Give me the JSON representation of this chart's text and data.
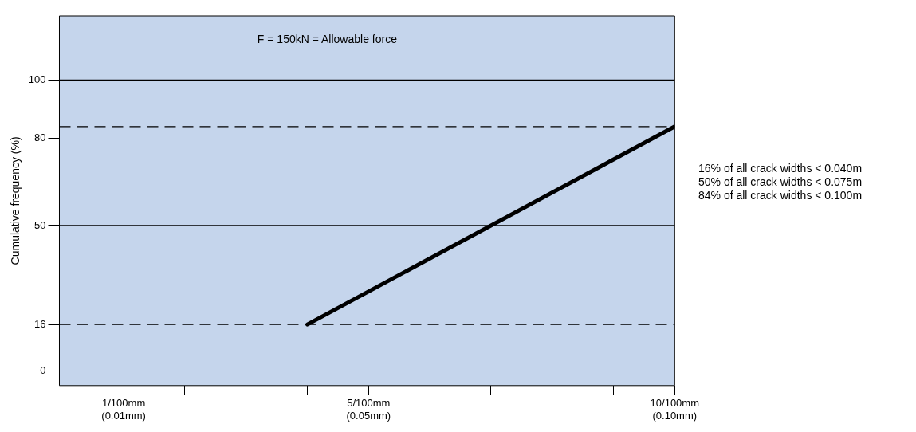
{
  "chart_data": {
    "type": "line",
    "ylabel": "Cumulative frequency (%)",
    "annotations": [
      "F = 150kN = Allowable force",
      "16% of all crack widths < 0.040m",
      "50% of all crack widths < 0.075m",
      "84% of all crack widths < 0.100m"
    ],
    "categories": [
      "1/100mm\n(0.01mm)",
      null,
      null,
      null,
      "5/100mm\n(0.05mm)",
      null,
      null,
      null,
      null,
      "10/100mm\n(0.10mm)"
    ],
    "series": [
      {
        "color": "#000000",
        "values": [
          null,
          null,
          null,
          16,
          null,
          null,
          null,
          null,
          null,
          84
        ]
      }
    ],
    "ylim": [
      -5,
      122
    ],
    "yticks": [
      0,
      16,
      50,
      80,
      100
    ],
    "ref_lines": [
      {
        "axis": "y",
        "value": 100,
        "color": "#000000",
        "line_style": "solid"
      },
      {
        "axis": "y",
        "value": 84,
        "color": "#000000",
        "line_style": "dashed"
      },
      {
        "axis": "y",
        "value": 50,
        "color": "#000000",
        "line_style": "solid"
      },
      {
        "axis": "y",
        "value": 16,
        "color": "#000000",
        "line_style": "dashed"
      }
    ],
    "grid": false,
    "legend": false,
    "marker": "none",
    "line_style": "solid"
  }
}
